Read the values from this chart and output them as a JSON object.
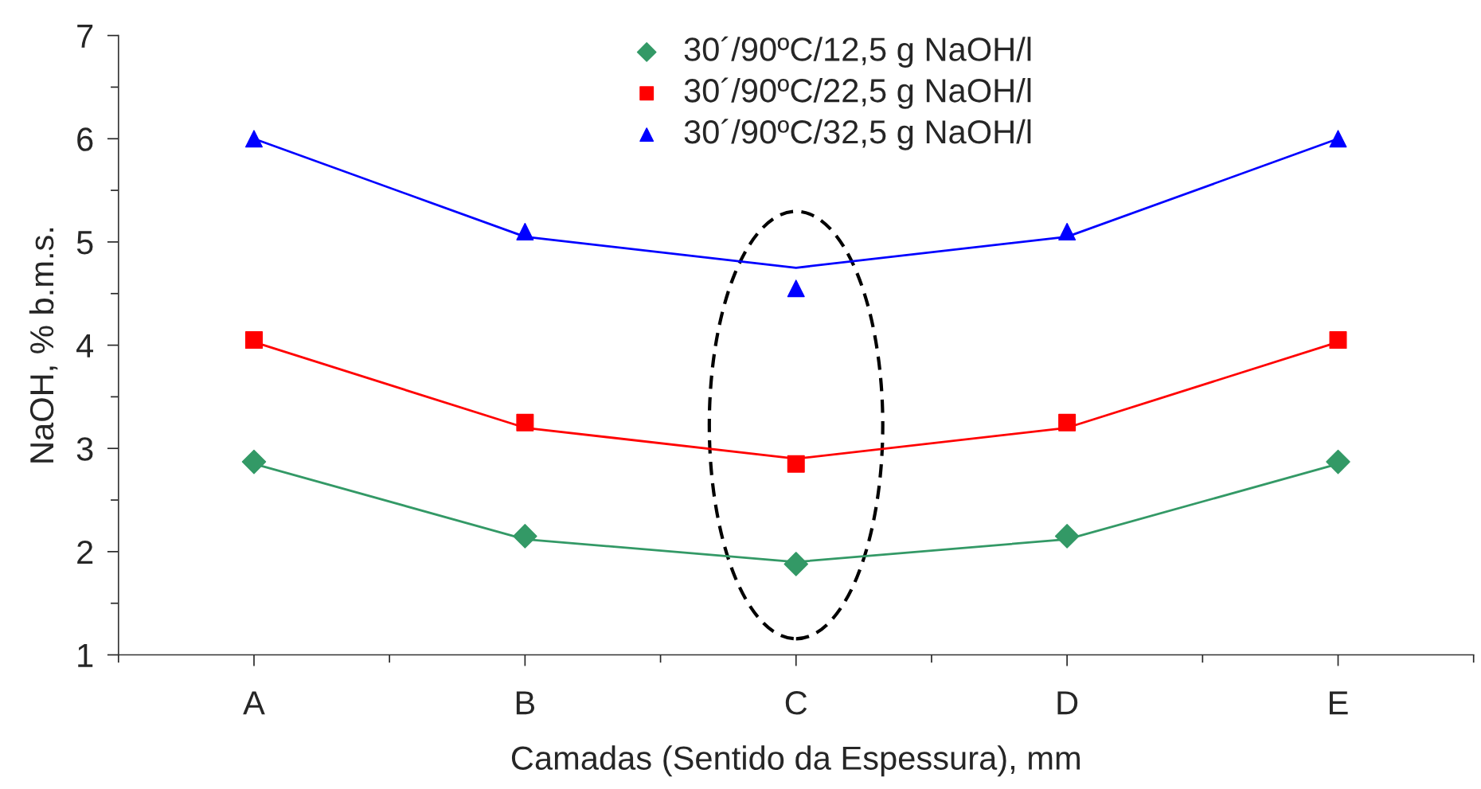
{
  "chart_data": {
    "type": "scatter",
    "xlabel": "Camadas (Sentido da Espessura), mm",
    "ylabel": "NaOH, % b.m.s.",
    "categories": [
      "A",
      "B",
      "C",
      "D",
      "E"
    ],
    "ylim": [
      1,
      7
    ],
    "yticks": [
      1,
      2,
      3,
      4,
      5,
      6,
      7
    ],
    "grid": false,
    "legend": "top",
    "series": [
      {
        "type": "line",
        "color": "#339966",
        "marker": "none",
        "values": [
          2.85,
          2.12,
          1.9,
          2.12,
          2.85
        ]
      },
      {
        "type": "line",
        "color": "#ff0000",
        "marker": "none",
        "values": [
          4.03,
          3.2,
          2.9,
          3.2,
          4.03
        ]
      },
      {
        "type": "line",
        "color": "#0000ff",
        "marker": "none",
        "values": [
          6.0,
          5.05,
          4.75,
          5.05,
          6.0
        ]
      },
      {
        "name": "30´/90ºC/12,5 g NaOH/l",
        "color": "#339966",
        "marker": "diamond",
        "values": [
          2.87,
          2.15,
          1.88,
          2.15,
          2.87
        ]
      },
      {
        "name": "30´/90ºC/22,5 g NaOH/l",
        "color": "#ff0000",
        "marker": "square",
        "values": [
          4.05,
          3.25,
          2.85,
          3.25,
          4.05
        ]
      },
      {
        "name": "30´/90ºC/32,5 g NaOH/l",
        "color": "#0000ff",
        "marker": "triangle",
        "values": [
          6.0,
          5.1,
          4.55,
          5.1,
          6.0
        ]
      }
    ]
  }
}
